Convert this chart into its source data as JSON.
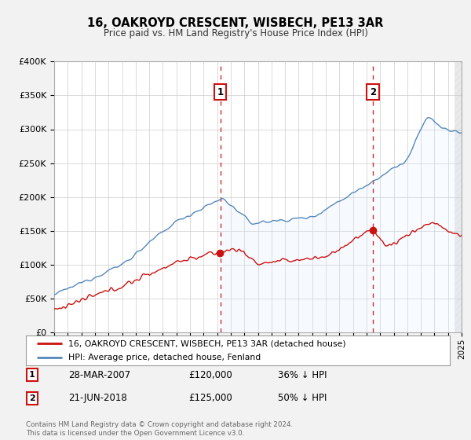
{
  "title": "16, OAKROYD CRESCENT, WISBECH, PE13 3AR",
  "subtitle": "Price paid vs. HM Land Registry's House Price Index (HPI)",
  "bg_color": "#f2f2f2",
  "plot_bg_color": "#ffffff",
  "grid_color": "#cccccc",
  "hpi_color": "#5588bb",
  "price_color": "#cc1111",
  "hpi_fill_color": "#ddeeff",
  "marker1_date": 2007.23,
  "marker2_date": 2018.47,
  "annotation1": [
    "28-MAR-2007",
    "£120,000",
    "36% ↓ HPI"
  ],
  "annotation2": [
    "21-JUN-2018",
    "£125,000",
    "50% ↓ HPI"
  ],
  "legend_line1": "16, OAKROYD CRESCENT, WISBECH, PE13 3AR (detached house)",
  "legend_line2": "HPI: Average price, detached house, Fenland",
  "footer": "Contains HM Land Registry data © Crown copyright and database right 2024.\nThis data is licensed under the Open Government Licence v3.0.",
  "ylim": [
    0,
    400000
  ],
  "yticks": [
    0,
    50000,
    100000,
    150000,
    200000,
    250000,
    300000,
    350000,
    400000
  ],
  "ytick_labels": [
    "£0",
    "£50K",
    "£100K",
    "£150K",
    "£200K",
    "£250K",
    "£300K",
    "£350K",
    "£400K"
  ],
  "xlim": [
    1995,
    2025
  ]
}
